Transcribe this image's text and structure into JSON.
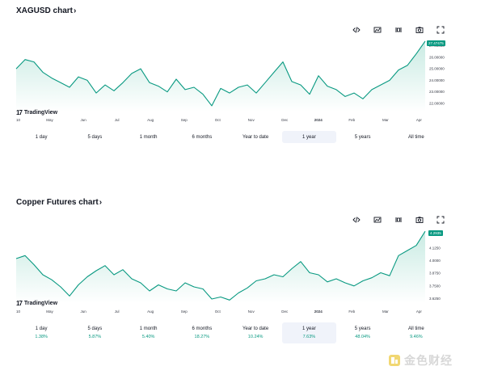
{
  "charts": [
    {
      "title": "XAGUSD chart",
      "arrow": "›",
      "logo_text": "TradingView",
      "last_price": "27.47475",
      "y_ticks": [
        "27.00000",
        "26.00000",
        "25.00000",
        "24.00000",
        "23.00000",
        "22.00000"
      ],
      "x_ticks": [
        "10",
        "May",
        "Jun",
        "Jul",
        "Aug",
        "Sep",
        "Oct",
        "Nov",
        "Dec",
        "2024",
        "Feb",
        "Mar",
        "Apr"
      ],
      "ranges": [
        {
          "label": "1 day",
          "pct": ""
        },
        {
          "label": "5 days",
          "pct": ""
        },
        {
          "label": "1 month",
          "pct": ""
        },
        {
          "label": "6 months",
          "pct": ""
        },
        {
          "label": "Year to date",
          "pct": ""
        },
        {
          "label": "1 year",
          "pct": ""
        },
        {
          "label": "5 years",
          "pct": ""
        },
        {
          "label": "All time",
          "pct": ""
        }
      ],
      "active_range": "1 year"
    },
    {
      "title": "Copper Futures chart",
      "arrow": "›",
      "logo_text": "TradingView",
      "last_price": "4.2935",
      "y_ticks": [
        "4.1250",
        "4.0000",
        "3.8750",
        "3.7500",
        "3.6250"
      ],
      "x_ticks": [
        "10",
        "May",
        "Jun",
        "Jul",
        "Aug",
        "Sep",
        "Oct",
        "Nov",
        "Dec",
        "2024",
        "Feb",
        "Mar",
        "Apr"
      ],
      "ranges": [
        {
          "label": "1 day",
          "pct": "1.38%"
        },
        {
          "label": "5 days",
          "pct": "5.87%"
        },
        {
          "label": "1 month",
          "pct": "5.40%"
        },
        {
          "label": "6 months",
          "pct": "18.27%"
        },
        {
          "label": "Year to date",
          "pct": "10.24%"
        },
        {
          "label": "1 year",
          "pct": "7.63%"
        },
        {
          "label": "5 years",
          "pct": "48.04%"
        },
        {
          "label": "All time",
          "pct": "9.46%"
        }
      ],
      "active_range": "1 year"
    }
  ],
  "toolbar_icons": [
    "embed-icon",
    "compare-icon",
    "fullscreen-chart-icon",
    "camera-icon",
    "expand-icon"
  ],
  "watermark_text": "金色财经",
  "colors": {
    "line": "#089981",
    "fill_top": "#c9ebe3",
    "fill_bottom": "#ffffff",
    "active_bg": "#f0f3fa"
  },
  "chart_data": [
    {
      "type": "area",
      "title": "XAGUSD chart",
      "xlabel": "",
      "ylabel": "",
      "ylim": [
        21.3,
        27.6
      ],
      "x": [
        "10",
        "",
        "May",
        "",
        "",
        "",
        "Jun",
        "",
        "",
        "",
        "Jul",
        "",
        "",
        "",
        "Aug",
        "",
        "",
        "",
        "Sep",
        "",
        "",
        "",
        "Oct",
        "",
        "",
        "",
        "Nov",
        "",
        "",
        "",
        "Dec",
        "",
        "",
        "",
        "2024",
        "",
        "",
        "",
        "Feb",
        "",
        "",
        "",
        "Mar",
        "",
        "",
        "Apr",
        ""
      ],
      "series": [
        {
          "values": [
            25.0,
            25.8,
            25.6,
            24.7,
            24.2,
            23.8,
            23.4,
            24.3,
            24.0,
            22.9,
            23.6,
            23.1,
            23.8,
            24.6,
            25.0,
            23.8,
            23.5,
            23.0,
            24.1,
            23.2,
            23.4,
            22.8,
            21.8,
            23.3,
            22.9,
            23.4,
            23.6,
            22.9,
            23.8,
            24.7,
            25.6,
            23.9,
            23.6,
            22.8,
            24.4,
            23.5,
            23.2,
            22.6,
            22.9,
            22.4,
            23.2,
            23.6,
            24.0,
            24.9,
            25.3,
            26.3,
            27.4
          ]
        }
      ]
    },
    {
      "type": "area",
      "title": "Copper Futures chart",
      "xlabel": "",
      "ylabel": "",
      "ylim": [
        3.58,
        4.3
      ],
      "x": [
        "10",
        "",
        "May",
        "",
        "",
        "",
        "Jun",
        "",
        "",
        "",
        "Jul",
        "",
        "",
        "",
        "Aug",
        "",
        "",
        "",
        "Sep",
        "",
        "",
        "",
        "Oct",
        "",
        "",
        "",
        "Nov",
        "",
        "",
        "",
        "Dec",
        "",
        "",
        "",
        "2024",
        "",
        "",
        "",
        "Feb",
        "",
        "",
        "",
        "Mar",
        "",
        "",
        "Apr",
        ""
      ],
      "series": [
        {
          "values": [
            4.02,
            4.05,
            3.96,
            3.86,
            3.81,
            3.74,
            3.65,
            3.76,
            3.84,
            3.9,
            3.95,
            3.86,
            3.91,
            3.82,
            3.78,
            3.7,
            3.76,
            3.72,
            3.7,
            3.78,
            3.74,
            3.72,
            3.62,
            3.64,
            3.61,
            3.68,
            3.73,
            3.8,
            3.82,
            3.86,
            3.84,
            3.92,
            3.99,
            3.88,
            3.86,
            3.79,
            3.82,
            3.78,
            3.75,
            3.8,
            3.83,
            3.88,
            3.85,
            4.05,
            4.1,
            4.15,
            4.29
          ]
        }
      ]
    }
  ]
}
